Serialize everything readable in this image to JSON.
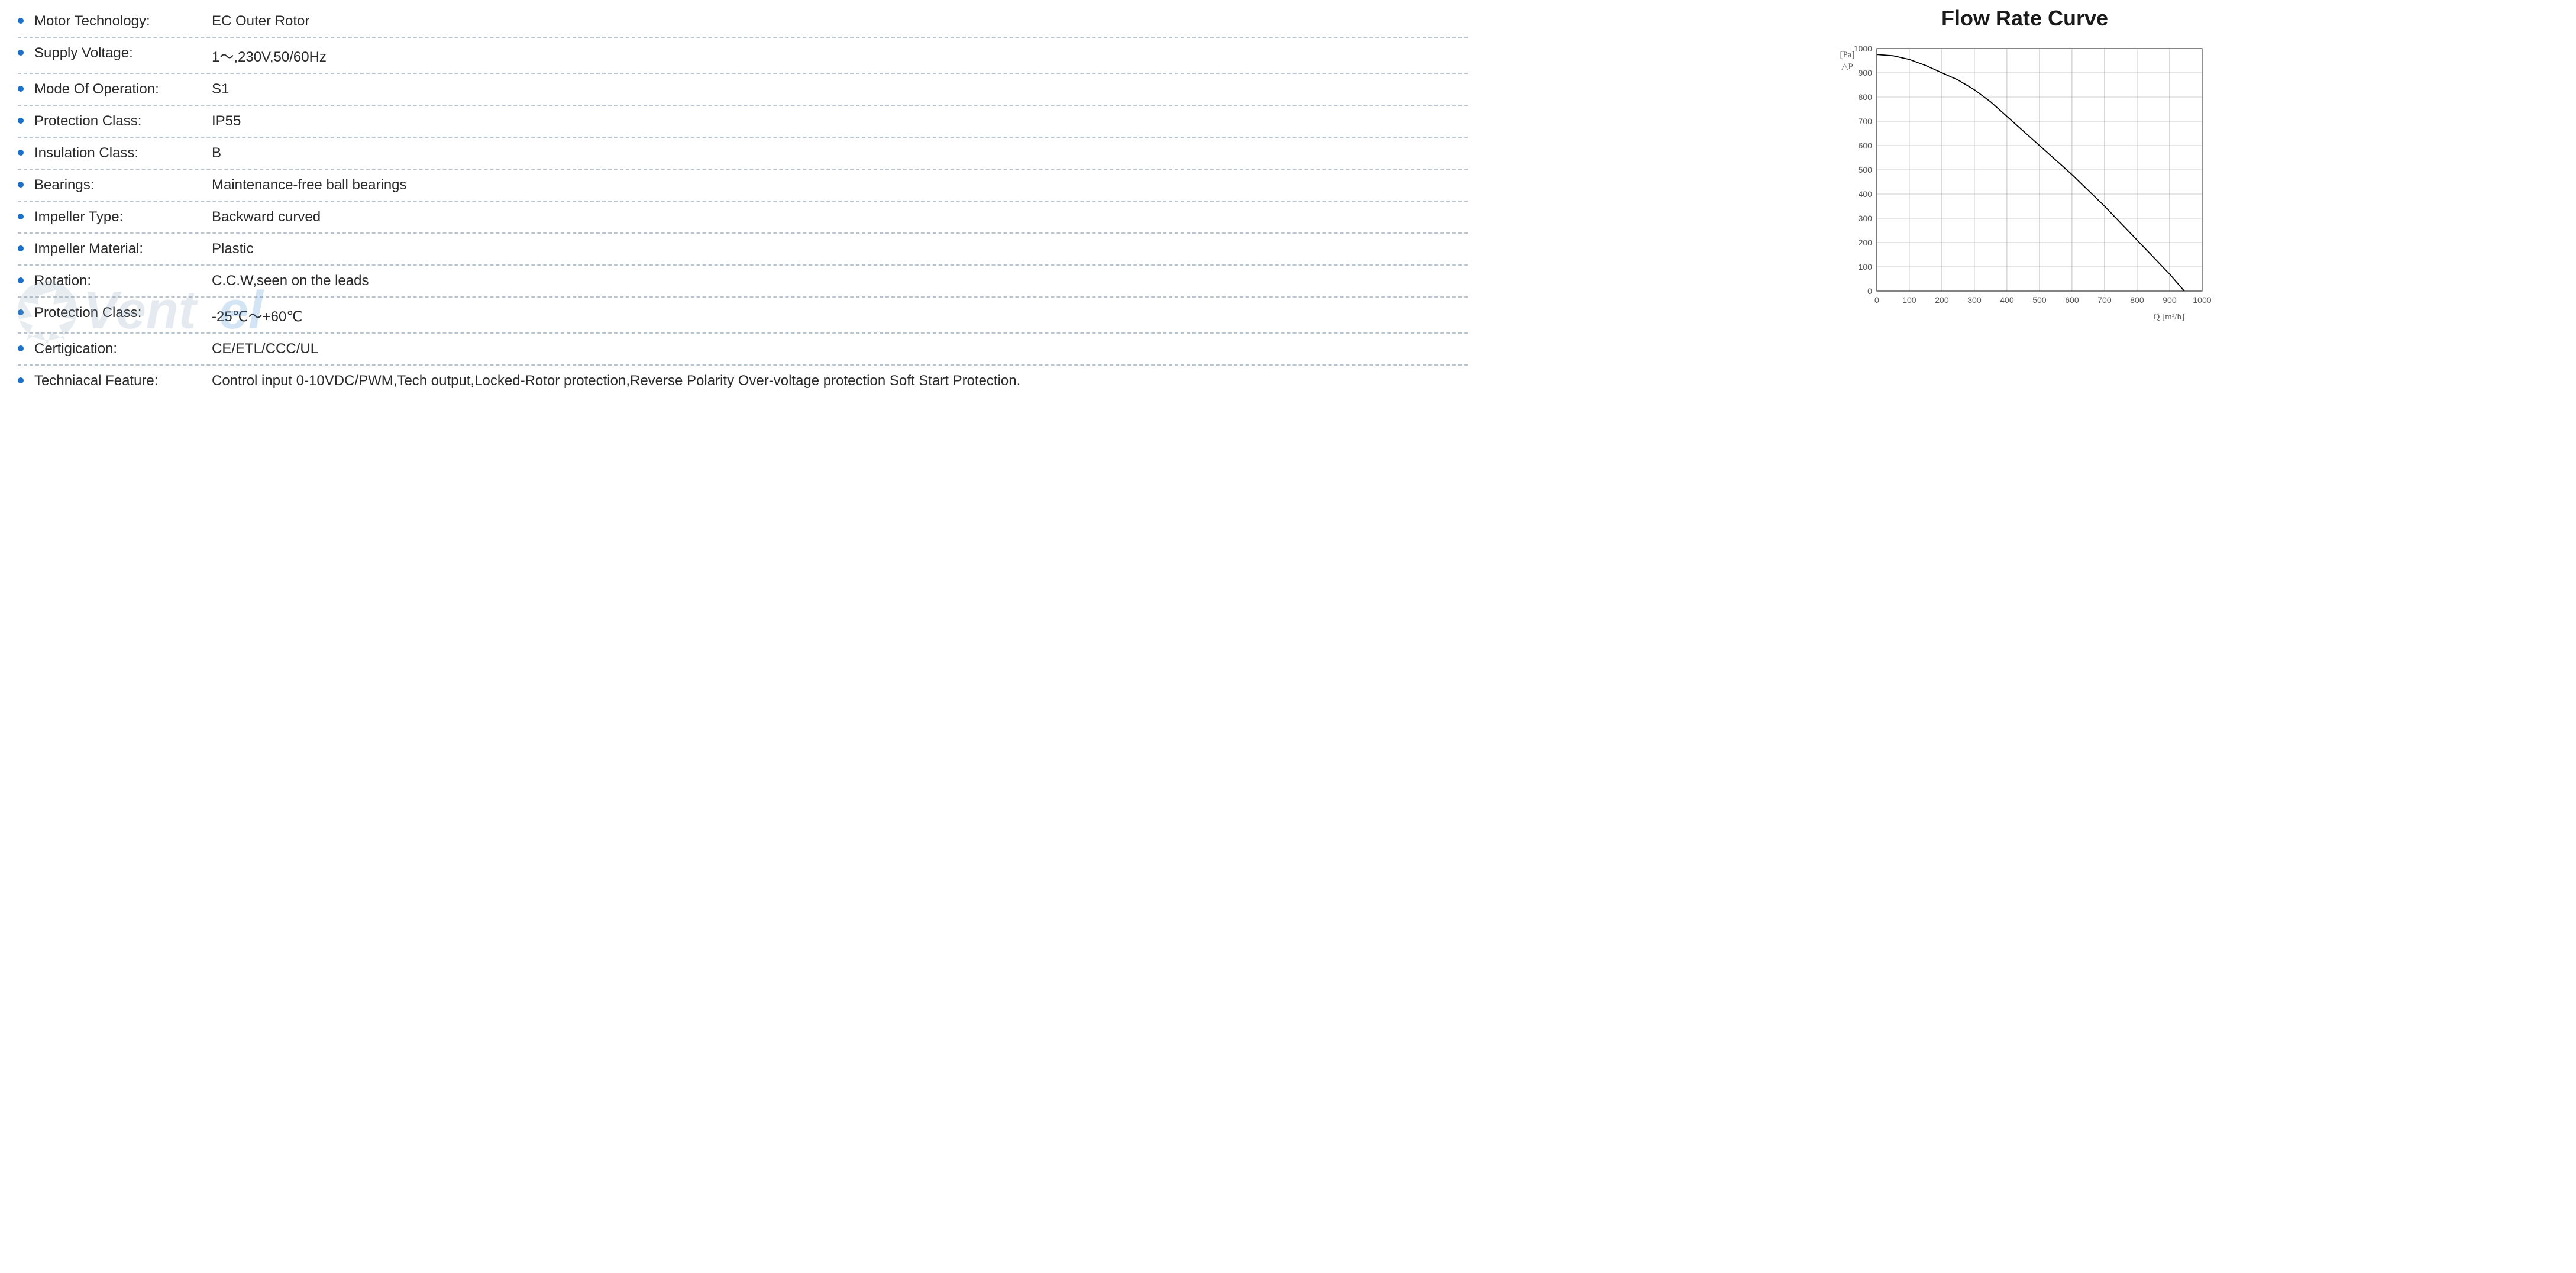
{
  "specs": [
    {
      "label": "Motor Technology:",
      "value": "EC Outer Rotor"
    },
    {
      "label": "Supply Voltage:",
      "value": "1～,230V,50/60Hz"
    },
    {
      "label": "Mode Of Operation:",
      "value": "S1"
    },
    {
      "label": "Protection Class:",
      "value": "IP55"
    },
    {
      "label": "Insulation Class:",
      "value": "B"
    },
    {
      "label": "Bearings:",
      "value": "Maintenance-free ball bearings"
    },
    {
      "label": "Impeller Type:",
      "value": "Backward curved"
    },
    {
      "label": "Impeller Material:",
      "value": "Plastic"
    },
    {
      "label": "Rotation:",
      "value": "C.C.W,seen on the leads"
    },
    {
      "label": "Protection Class:",
      "value": "-25℃～+60℃"
    },
    {
      "label": "Certigication:",
      "value": "CE/ETL/CCC/UL"
    },
    {
      "label": "Techniacal Feature:",
      "value": "Control input 0-10VDC/PWM,Tech output,Locked-Rotor protection,Reverse Polarity Over-voltage protection Soft Start Protection."
    }
  ],
  "chart": {
    "title": "Flow Rate Curve",
    "type": "line",
    "x_label": "Q [m³/h]",
    "y_label": "△P [Pa]",
    "xlim": [
      0,
      1000
    ],
    "ylim": [
      0,
      1000
    ],
    "xtick_step": 100,
    "ytick_step": 100,
    "x_ticks": [
      0,
      100,
      200,
      300,
      400,
      500,
      600,
      700,
      800,
      900,
      1000
    ],
    "y_ticks": [
      0,
      100,
      200,
      300,
      400,
      500,
      600,
      700,
      800,
      900,
      1000
    ],
    "background_color": "#ffffff",
    "grid_color": "#a0a0a0",
    "border_color": "#333333",
    "curve_color": "#000000",
    "curve_width": 1.8,
    "label_fontsize": 14,
    "axis_label_fontsize": 15,
    "curve_points": [
      [
        0,
        975
      ],
      [
        50,
        970
      ],
      [
        100,
        955
      ],
      [
        150,
        930
      ],
      [
        200,
        900
      ],
      [
        250,
        870
      ],
      [
        300,
        830
      ],
      [
        350,
        780
      ],
      [
        400,
        720
      ],
      [
        450,
        660
      ],
      [
        500,
        600
      ],
      [
        550,
        540
      ],
      [
        600,
        480
      ],
      [
        650,
        415
      ],
      [
        700,
        350
      ],
      [
        750,
        280
      ],
      [
        800,
        210
      ],
      [
        850,
        140
      ],
      [
        900,
        70
      ],
      [
        945,
        0
      ]
    ]
  },
  "watermark_text": "Ventel"
}
